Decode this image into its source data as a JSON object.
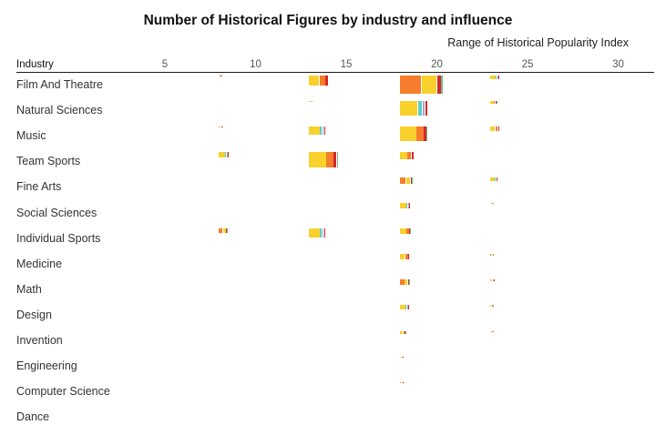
{
  "chart_data": {
    "type": "treemap-grid",
    "title": "Number of Historical Figures by industry and influence",
    "subtitle": "Range of Historical Popularity Index",
    "row_axis_label": "Industry",
    "x_ticks": [
      5,
      10,
      15,
      20,
      25,
      30
    ],
    "x_range": [
      2.5,
      32
    ],
    "bins": [
      8,
      13,
      18,
      23
    ],
    "colors": {
      "yellow": "#F9D12D",
      "orange": "#F57D2B",
      "darkorange": "#EE5A24",
      "red": "#D8262B",
      "teal": "#5CCBC7",
      "lavender": "#A7A3CF",
      "green": "#6CC08B"
    },
    "industries": [
      "Film And Theatre",
      "Natural Sciences",
      "Music",
      "Team Sports",
      "Fine Arts",
      "Social Sciences",
      "Individual Sports",
      "Medicine",
      "Math",
      "Design",
      "Invention",
      "Engineering",
      "Computer Science",
      "Dance"
    ],
    "cells": [
      {
        "industry": "Film And Theatre",
        "bin": 8,
        "count": 1
      },
      {
        "industry": "Film And Theatre",
        "bin": 13,
        "count": 51
      },
      {
        "industry": "Film And Theatre",
        "bin": 18,
        "count": 202
      },
      {
        "industry": "Film And Theatre",
        "bin": 23,
        "count": 10
      },
      {
        "industry": "Natural Sciences",
        "bin": 13,
        "count": 1
      },
      {
        "industry": "Natural Sciences",
        "bin": 18,
        "count": 106
      },
      {
        "industry": "Natural Sciences",
        "bin": 23,
        "count": 5
      },
      {
        "industry": "Music",
        "bin": 8,
        "count": 2
      },
      {
        "industry": "Music",
        "bin": 13,
        "count": 37
      },
      {
        "industry": "Music",
        "bin": 18,
        "count": 108
      },
      {
        "industry": "Music",
        "bin": 23,
        "count": 11
      },
      {
        "industry": "Team Sports",
        "bin": 8,
        "count": 15
      },
      {
        "industry": "Team Sports",
        "bin": 13,
        "count": 112
      },
      {
        "industry": "Team Sports",
        "bin": 18,
        "count": 27
      },
      {
        "industry": "Team Sports",
        "bin": 23,
        "count": 0
      },
      {
        "industry": "Fine Arts",
        "bin": 18,
        "count": 22
      },
      {
        "industry": "Fine Arts",
        "bin": 23,
        "count": 7
      },
      {
        "industry": "Social Sciences",
        "bin": 18,
        "count": 15
      },
      {
        "industry": "Social Sciences",
        "bin": 23,
        "count": 1
      },
      {
        "industry": "Individual Sports",
        "bin": 8,
        "count": 11
      },
      {
        "industry": "Individual Sports",
        "bin": 13,
        "count": 38
      },
      {
        "industry": "Individual Sports",
        "bin": 18,
        "count": 17
      },
      {
        "industry": "Medicine",
        "bin": 18,
        "count": 14
      },
      {
        "industry": "Medicine",
        "bin": 23,
        "count": 1
      },
      {
        "industry": "Math",
        "bin": 18,
        "count": 13
      },
      {
        "industry": "Math",
        "bin": 23,
        "count": 2
      },
      {
        "industry": "Design",
        "bin": 18,
        "count": 11
      },
      {
        "industry": "Design",
        "bin": 23,
        "count": 1
      },
      {
        "industry": "Invention",
        "bin": 18,
        "count": 5
      },
      {
        "industry": "Invention",
        "bin": 23,
        "count": 1
      },
      {
        "industry": "Engineering",
        "bin": 18,
        "count": 2
      },
      {
        "industry": "Computer Science",
        "bin": 18,
        "count": 2
      },
      {
        "industry": "Dance",
        "bin": 18,
        "count": 0
      }
    ]
  }
}
